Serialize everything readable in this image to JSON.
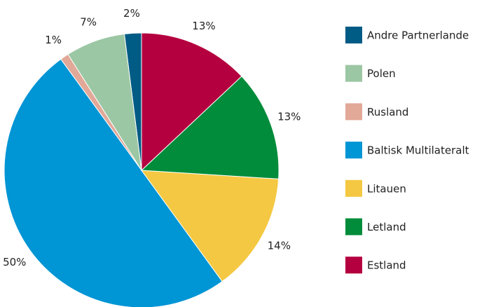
{
  "chart_data": {
    "type": "pie",
    "categories": [
      "Andre Partnerlande",
      "Polen",
      "Rusland",
      "Baltisk Multilateralt",
      "Litauen",
      "Letland",
      "Estland"
    ],
    "values": [
      2,
      7,
      1,
      50,
      14,
      13,
      13
    ],
    "value_labels": [
      "2%",
      "7%",
      "1%",
      "50%",
      "14%",
      "13%",
      "13%"
    ],
    "colors": [
      "#005b85",
      "#9cc7a4",
      "#e2a898",
      "#0095d5",
      "#f4c842",
      "#008c3a",
      "#b5003f"
    ],
    "legend": "right"
  }
}
